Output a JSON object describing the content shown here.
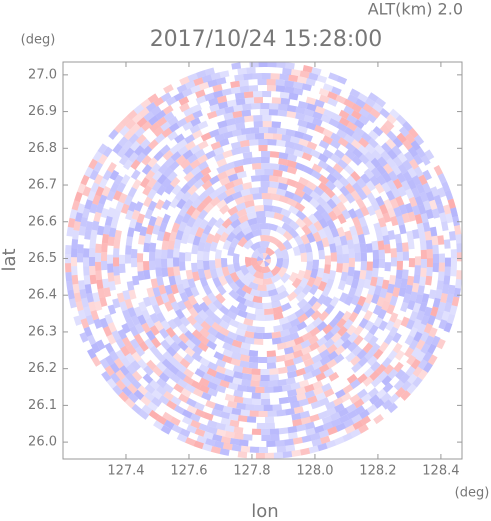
{
  "chart_data": {
    "type": "radar-ppi",
    "title": "2017/10/24 15:28:00",
    "annotation": "ALT(km) 2.0",
    "x_label": "lon",
    "x_unit": "(deg)",
    "y_label": "lat",
    "y_unit": "(deg)",
    "xlim": [
      127.2,
      128.467
    ],
    "xticks": [
      127.4,
      127.6,
      127.8,
      {
        "value": 128.0,
        "label": "128.0"
      },
      128.2,
      128.4
    ],
    "ylim": [
      25.954,
      27.035
    ],
    "yticks": [
      {
        "value": 26.0,
        "label": "26.0"
      },
      26.1,
      26.2,
      26.3,
      26.4,
      26.5,
      26.6,
      26.7,
      26.8,
      26.9,
      {
        "value": 27.0,
        "label": "27.0"
      }
    ]
  }
}
